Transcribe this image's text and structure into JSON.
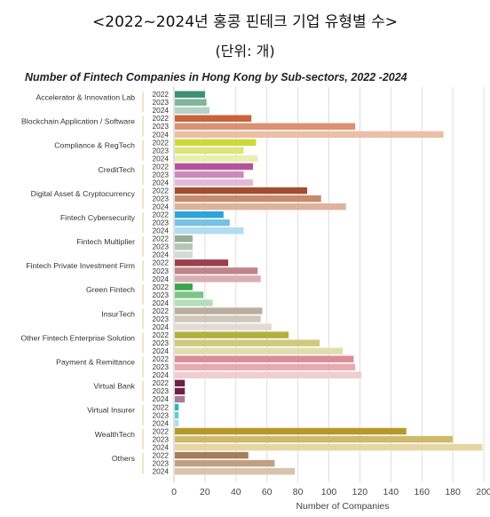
{
  "header": {
    "title": "<2022~2024년 홍콩 핀테크 기업 유형별 수>",
    "unit": "(단위: 개)"
  },
  "chart_data": {
    "type": "bar",
    "orientation": "horizontal",
    "title": "Number of Fintech Companies in Hong Kong by Sub-sectors, 2022 -2024",
    "xlabel": "Number of Companies",
    "ylabel": "",
    "xlim": [
      0,
      200
    ],
    "xticks": [
      0,
      20,
      40,
      60,
      80,
      100,
      120,
      140,
      160,
      180,
      200
    ],
    "grid": "vertical",
    "years": [
      "2022",
      "2023",
      "2024"
    ],
    "categories": [
      "Accelerator & Innovation Lab",
      "Blockchain Application / Software",
      "Compliance & RegTech",
      "CreditTech",
      "Digital Asset & Cryptocurrency",
      "Fintech Cybersecurity",
      "Fintech Multiplier",
      "Fintech Private Investment Firm",
      "Green Fintech",
      "InsurTech",
      "Other Fintech Enterprise Solution",
      "Payment & Remittance",
      "Virtual Bank",
      "Virtual Insurer",
      "WealthTech",
      "Others"
    ],
    "values": [
      [
        20,
        21,
        23
      ],
      [
        50,
        117,
        174
      ],
      [
        53,
        45,
        54
      ],
      [
        51,
        45,
        51
      ],
      [
        86,
        95,
        111
      ],
      [
        32,
        36,
        45
      ],
      [
        12,
        12,
        12
      ],
      [
        35,
        54,
        56
      ],
      [
        12,
        19,
        25
      ],
      [
        57,
        56,
        63
      ],
      [
        74,
        94,
        109
      ],
      [
        116,
        117,
        121
      ],
      [
        7,
        7,
        7
      ],
      [
        3,
        3,
        3
      ],
      [
        150,
        180,
        199
      ],
      [
        48,
        65,
        78
      ]
    ],
    "colors": [
      [
        "#3f8f74",
        "#7fb69d",
        "#b3d3c4"
      ],
      [
        "#c8643c",
        "#dc9173",
        "#ebbea6"
      ],
      [
        "#cbd93b",
        "#dbe57a",
        "#e9efae"
      ],
      [
        "#b4539a",
        "#cd8ab9",
        "#e2bad7"
      ],
      [
        "#a24d30",
        "#c88a6c",
        "#deb39c"
      ],
      [
        "#2ea4d8",
        "#77c2e5",
        "#b2dcf0"
      ],
      [
        "#95ad96",
        "#b6c6b6",
        "#d2dcd2"
      ],
      [
        "#9c3f4a",
        "#c0858b",
        "#d9afb3"
      ],
      [
        "#3aa54a",
        "#7cc487",
        "#b6deba"
      ],
      [
        "#bbae9e",
        "#d0c7bb",
        "#e2dbd2"
      ],
      [
        "#b4b03e",
        "#cdca7d",
        "#e0deae"
      ],
      [
        "#db8d96",
        "#e7abb1",
        "#f0cdd0"
      ],
      [
        "#6e2046",
        "#6e2046",
        "#a88096"
      ],
      [
        "#27b6c7",
        "#5ecbd8",
        "#a6e1e8"
      ],
      [
        "#b5982a",
        "#cfba6b",
        "#e6d6a4"
      ],
      [
        "#a47d5b",
        "#c0a083",
        "#d9c3ad"
      ]
    ]
  }
}
